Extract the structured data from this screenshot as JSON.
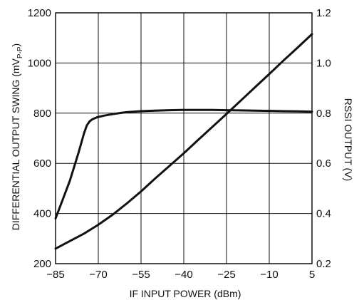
{
  "chart_data": {
    "type": "line",
    "title": "",
    "xlabel": "IF INPUT POWER (dBm)",
    "ylabel_left": {
      "main": "DIFFERENTIAL OUTPUT SWING (mV",
      "sub": "P-P",
      "close": ")"
    },
    "ylabel_right": "RSSI OUTPUT (V)",
    "xlim": [
      -85,
      5
    ],
    "ylim_left": [
      200,
      1200
    ],
    "ylim_right": [
      0.2,
      1.2
    ],
    "x_ticks": [
      -85,
      -70,
      -55,
      -40,
      -25,
      -10,
      5
    ],
    "x_tick_labels": [
      "−85",
      "−70",
      "−55",
      "−40",
      "−25",
      "−10",
      "5"
    ],
    "y_left_ticks": [
      200,
      400,
      600,
      800,
      1000,
      1200
    ],
    "y_left_tick_labels": [
      "200",
      "400",
      "600",
      "800",
      "1000",
      "1200"
    ],
    "y_right_ticks": [
      0.2,
      0.4,
      0.6,
      0.8,
      1.0,
      1.2
    ],
    "y_right_tick_labels": [
      "0.2",
      "0.4",
      "0.6",
      "0.8",
      "1.0",
      "1.2"
    ],
    "grid": true,
    "line_color": "#111111",
    "series": [
      {
        "axis": "left",
        "x": [
          -85,
          -80,
          -77,
          -75,
          -74,
          -73,
          -72,
          -71,
          -70,
          -68,
          -65,
          -62,
          -60,
          -55,
          -50,
          -45,
          -40,
          -35,
          -30,
          -25,
          -20,
          -15,
          -10,
          -5,
          0,
          5
        ],
        "y": [
          380,
          530,
          640,
          720,
          752,
          768,
          776,
          781,
          785,
          790,
          796,
          801,
          804,
          808,
          810,
          812,
          813,
          813,
          813,
          812,
          811,
          810,
          809,
          808,
          807,
          806
        ]
      },
      {
        "axis": "right",
        "x": [
          -85,
          -80,
          -75,
          -70,
          -65,
          -60,
          -55,
          -50,
          -45,
          -40,
          -35,
          -30,
          -25,
          -20,
          -15,
          -10,
          -5,
          0,
          5
        ],
        "y": [
          0.26,
          0.29,
          0.32,
          0.355,
          0.395,
          0.44,
          0.488,
          0.54,
          0.59,
          0.64,
          0.693,
          0.745,
          0.797,
          0.85,
          0.903,
          0.956,
          1.01,
          1.062,
          1.115
        ]
      }
    ]
  }
}
